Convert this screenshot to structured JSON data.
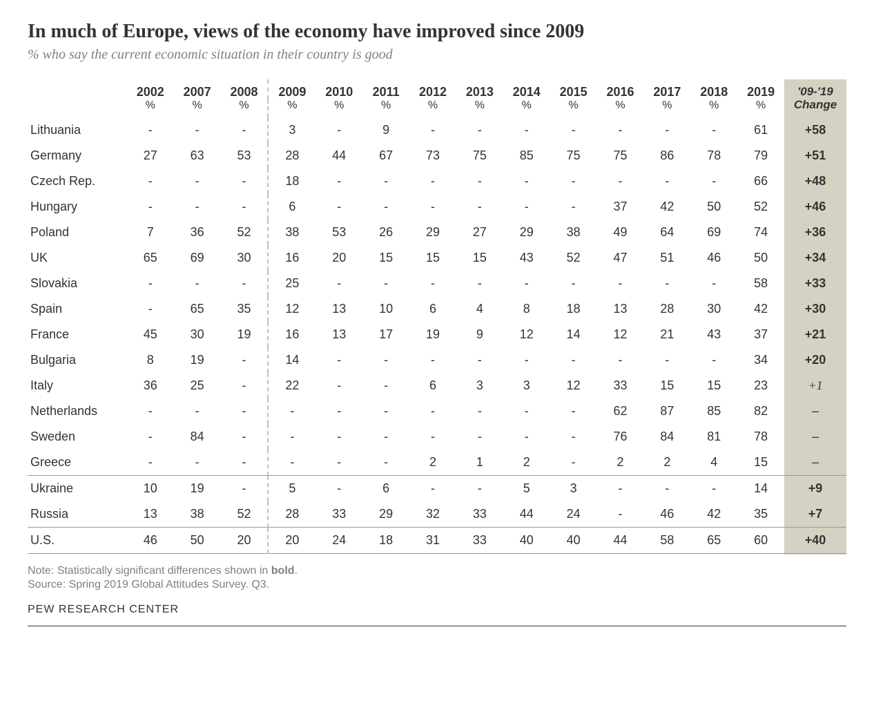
{
  "title": "In much of Europe, views of the economy have improved since 2009",
  "subtitle": "% who say the current economic situation in their country is good",
  "years": [
    "2002",
    "2007",
    "2008",
    "2009",
    "2010",
    "2011",
    "2012",
    "2013",
    "2014",
    "2015",
    "2016",
    "2017",
    "2018",
    "2019"
  ],
  "change_header": "'09-'19\nChange",
  "pct_label": "%",
  "dashed_before_index": 3,
  "groups": [
    {
      "rows": [
        {
          "country": "Lithuania",
          "vals": [
            "-",
            "-",
            "-",
            "3",
            "-",
            "9",
            "-",
            "-",
            "-",
            "-",
            "-",
            "-",
            "-",
            "61"
          ],
          "change": "+58",
          "bold": true
        },
        {
          "country": "Germany",
          "vals": [
            "27",
            "63",
            "53",
            "28",
            "44",
            "67",
            "73",
            "75",
            "85",
            "75",
            "75",
            "86",
            "78",
            "79"
          ],
          "change": "+51",
          "bold": true
        },
        {
          "country": "Czech Rep.",
          "vals": [
            "-",
            "-",
            "-",
            "18",
            "-",
            "-",
            "-",
            "-",
            "-",
            "-",
            "-",
            "-",
            "-",
            "66"
          ],
          "change": "+48",
          "bold": true
        },
        {
          "country": "Hungary",
          "vals": [
            "-",
            "-",
            "-",
            "6",
            "-",
            "-",
            "-",
            "-",
            "-",
            "-",
            "37",
            "42",
            "50",
            "52"
          ],
          "change": "+46",
          "bold": true
        },
        {
          "country": "Poland",
          "vals": [
            "7",
            "36",
            "52",
            "38",
            "53",
            "26",
            "29",
            "27",
            "29",
            "38",
            "49",
            "64",
            "69",
            "74"
          ],
          "change": "+36",
          "bold": true
        },
        {
          "country": "UK",
          "vals": [
            "65",
            "69",
            "30",
            "16",
            "20",
            "15",
            "15",
            "15",
            "43",
            "52",
            "47",
            "51",
            "46",
            "50"
          ],
          "change": "+34",
          "bold": true
        },
        {
          "country": "Slovakia",
          "vals": [
            "-",
            "-",
            "-",
            "25",
            "-",
            "-",
            "-",
            "-",
            "-",
            "-",
            "-",
            "-",
            "-",
            "58"
          ],
          "change": "+33",
          "bold": true
        },
        {
          "country": "Spain",
          "vals": [
            "-",
            "65",
            "35",
            "12",
            "13",
            "10",
            "6",
            "4",
            "8",
            "18",
            "13",
            "28",
            "30",
            "42"
          ],
          "change": "+30",
          "bold": true
        },
        {
          "country": "France",
          "vals": [
            "45",
            "30",
            "19",
            "16",
            "13",
            "17",
            "19",
            "9",
            "12",
            "14",
            "12",
            "21",
            "43",
            "37"
          ],
          "change": "+21",
          "bold": true
        },
        {
          "country": "Bulgaria",
          "vals": [
            "8",
            "19",
            "-",
            "14",
            "-",
            "-",
            "-",
            "-",
            "-",
            "-",
            "-",
            "-",
            "-",
            "34"
          ],
          "change": "+20",
          "bold": true
        },
        {
          "country": "Italy",
          "vals": [
            "36",
            "25",
            "-",
            "22",
            "-",
            "-",
            "6",
            "3",
            "3",
            "12",
            "33",
            "15",
            "15",
            "23"
          ],
          "change": "+1",
          "bold": false,
          "italic": true
        },
        {
          "country": "Netherlands",
          "vals": [
            "-",
            "-",
            "-",
            "-",
            "-",
            "-",
            "-",
            "-",
            "-",
            "-",
            "62",
            "87",
            "85",
            "82"
          ],
          "change": "–",
          "bold": false
        },
        {
          "country": "Sweden",
          "vals": [
            "-",
            "84",
            "-",
            "-",
            "-",
            "-",
            "-",
            "-",
            "-",
            "-",
            "76",
            "84",
            "81",
            "78"
          ],
          "change": "–",
          "bold": false
        },
        {
          "country": "Greece",
          "vals": [
            "-",
            "-",
            "-",
            "-",
            "-",
            "-",
            "2",
            "1",
            "2",
            "-",
            "2",
            "2",
            "4",
            "15"
          ],
          "change": "–",
          "bold": false
        }
      ]
    },
    {
      "rows": [
        {
          "country": "Ukraine",
          "vals": [
            "10",
            "19",
            "-",
            "5",
            "-",
            "6",
            "-",
            "-",
            "5",
            "3",
            "-",
            "-",
            "-",
            "14"
          ],
          "change": "+9",
          "bold": true
        },
        {
          "country": "Russia",
          "vals": [
            "13",
            "38",
            "52",
            "28",
            "33",
            "29",
            "32",
            "33",
            "44",
            "24",
            "-",
            "46",
            "42",
            "35"
          ],
          "change": "+7",
          "bold": true
        }
      ]
    },
    {
      "rows": [
        {
          "country": "U.S.",
          "vals": [
            "46",
            "50",
            "20",
            "20",
            "24",
            "18",
            "31",
            "33",
            "40",
            "40",
            "44",
            "58",
            "65",
            "60"
          ],
          "change": "+40",
          "bold": true
        }
      ]
    }
  ],
  "note_prefix": "Note: Statistically significant differences shown in ",
  "note_bold": "bold",
  "note_suffix": ".",
  "source": "Source: Spring 2019 Global Attitudes Survey. Q3.",
  "brand": "PEW RESEARCH CENTER",
  "colors": {
    "shade": "#d4d2c3",
    "text": "#333333",
    "muted": "#808080",
    "dash": "#bfbfbf",
    "rule": "#999999"
  }
}
